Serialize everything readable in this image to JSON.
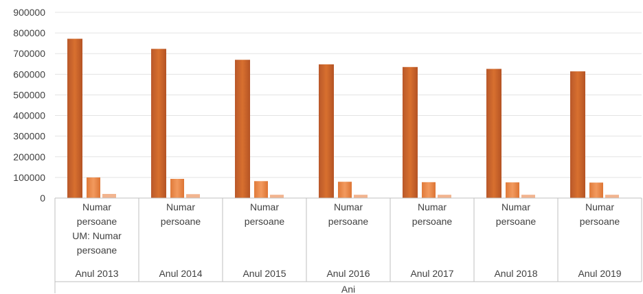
{
  "chart_data": {
    "type": "bar",
    "title": "",
    "xlabel": "Ani",
    "ylabel": "",
    "ylim": [
      0,
      900000
    ],
    "yticks": [
      0,
      100000,
      200000,
      300000,
      400000,
      500000,
      600000,
      700000,
      800000,
      900000
    ],
    "grid": true,
    "legend": "none",
    "categories": [
      "Anul 2013",
      "Anul 2014",
      "Anul 2015",
      "Anul 2016",
      "Anul 2017",
      "Anul 2018",
      "Anul 2019"
    ],
    "sub_labels": [
      [
        "Numar",
        "persoane",
        "UM: Numar",
        "persoane"
      ],
      [
        "Numar",
        "persoane"
      ],
      [
        "Numar",
        "persoane"
      ],
      [
        "Numar",
        "persoane"
      ],
      [
        "Numar",
        "persoane"
      ],
      [
        "Numar",
        "persoane"
      ],
      [
        "Numar",
        "persoane"
      ]
    ],
    "series": [
      {
        "values": [
          772000,
          723000,
          670000,
          648000,
          635000,
          626000,
          614000
        ],
        "color": "#c0622a"
      },
      {
        "values": [
          100000,
          93000,
          82000,
          79000,
          77000,
          76000,
          75000
        ],
        "color": "#e98a4c"
      },
      {
        "values": [
          20000,
          19000,
          16000,
          16000,
          16000,
          16000,
          16000
        ],
        "color": "#f2b48f"
      }
    ]
  }
}
